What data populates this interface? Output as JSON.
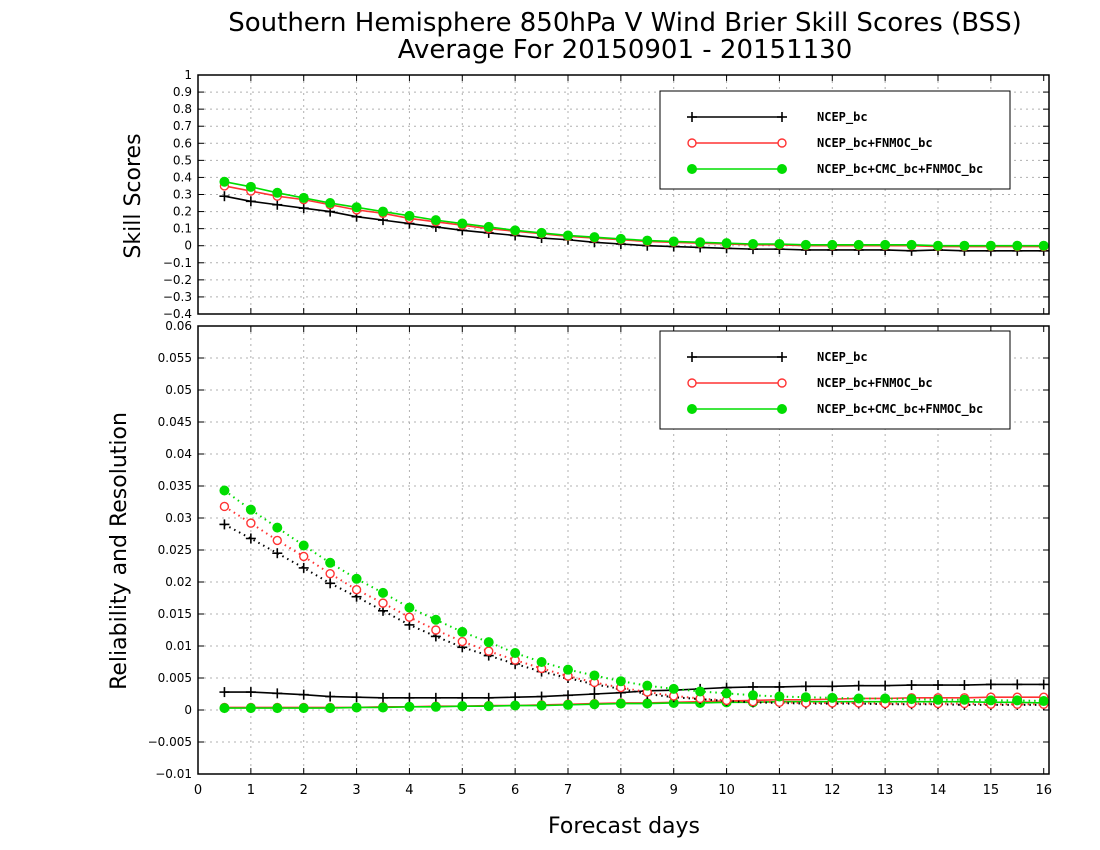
{
  "chart_data": {
    "title": "Southern Hemisphere 850hPa V Wind Brier Skill Scores (BSS)",
    "subtitle": "Average For 20150901 - 20151130",
    "xlabel": "Forecast days",
    "xlim": [
      0,
      16.1
    ],
    "xticks": [
      0,
      1,
      2,
      3,
      4,
      5,
      6,
      7,
      8,
      9,
      10,
      11,
      12,
      13,
      14,
      15,
      16
    ],
    "x": [
      0.5,
      1,
      1.5,
      2,
      2.5,
      3,
      3.5,
      4,
      4.5,
      5,
      5.5,
      6,
      6.5,
      7,
      7.5,
      8,
      8.5,
      9,
      9.5,
      10,
      10.5,
      11,
      11.5,
      12,
      12.5,
      13,
      13.5,
      14,
      14.5,
      15,
      15.5,
      16
    ],
    "grid": true,
    "legend_placement": "top-right",
    "series_styles": [
      {
        "name": "NCEP_bc",
        "color": "#000000",
        "marker": "plus"
      },
      {
        "name": "NCEP_bc+FNMOC_bc",
        "color": "#ff3333",
        "marker": "open-circle"
      },
      {
        "name": "NCEP_bc+CMC_bc+FNMOC_bc",
        "color": "#00dd00",
        "marker": "filled-circle"
      }
    ],
    "panels": [
      {
        "type": "line",
        "ylabel": "Skill Scores",
        "ylim": [
          -0.4,
          1
        ],
        "yticks": [
          "−0.4",
          "−0.3",
          "−0.2",
          "−0.1",
          "0",
          "0.1",
          "0.2",
          "0.3",
          "0.4",
          "0.5",
          "0.6",
          "0.7",
          "0.8",
          "0.9",
          "1"
        ],
        "ytick_values": [
          -0.4,
          -0.3,
          -0.2,
          -0.1,
          0,
          0.1,
          0.2,
          0.3,
          0.4,
          0.5,
          0.6,
          0.7,
          0.8,
          0.9,
          1
        ],
        "series": [
          {
            "name": "NCEP_bc",
            "style": "solid",
            "values": [
              0.29,
              0.26,
              0.24,
              0.22,
              0.2,
              0.17,
              0.15,
              0.13,
              0.11,
              0.09,
              0.075,
              0.06,
              0.045,
              0.035,
              0.02,
              0.01,
              0.0,
              -0.005,
              -0.01,
              -0.015,
              -0.02,
              -0.02,
              -0.025,
              -0.025,
              -0.025,
              -0.025,
              -0.03,
              -0.025,
              -0.03,
              -0.03,
              -0.03,
              -0.03
            ]
          },
          {
            "name": "NCEP_bc+FNMOC_bc",
            "style": "solid",
            "values": [
              0.35,
              0.32,
              0.29,
              0.27,
              0.24,
              0.21,
              0.19,
              0.16,
              0.14,
              0.12,
              0.1,
              0.085,
              0.07,
              0.055,
              0.045,
              0.035,
              0.025,
              0.02,
              0.015,
              0.01,
              0.005,
              0.005,
              0.0,
              0.0,
              0.0,
              0.0,
              0.0,
              -0.005,
              -0.005,
              -0.005,
              -0.005,
              -0.005
            ]
          },
          {
            "name": "NCEP_bc+CMC_bc+FNMOC_bc",
            "style": "solid",
            "values": [
              0.375,
              0.345,
              0.31,
              0.28,
              0.25,
              0.225,
              0.2,
              0.175,
              0.15,
              0.13,
              0.11,
              0.09,
              0.075,
              0.06,
              0.05,
              0.04,
              0.03,
              0.025,
              0.02,
              0.015,
              0.01,
              0.01,
              0.005,
              0.005,
              0.005,
              0.005,
              0.005,
              0.0,
              0.0,
              0.0,
              0.0,
              0.0
            ]
          }
        ],
        "legend": [
          "NCEP_bc",
          "NCEP_bc+FNMOC_bc",
          "NCEP_bc+CMC_bc+FNMOC_bc"
        ]
      },
      {
        "type": "line",
        "ylabel": "Reliability and Resolution",
        "ylim": [
          -0.01,
          0.06
        ],
        "yticks": [
          "−0.01",
          "−0.005",
          "0",
          "0.005",
          "0.01",
          "0.015",
          "0.02",
          "0.025",
          "0.03",
          "0.035",
          "0.04",
          "0.045",
          "0.05",
          "0.055",
          "0.06"
        ],
        "ytick_values": [
          -0.01,
          -0.005,
          0,
          0.005,
          0.01,
          0.015,
          0.02,
          0.025,
          0.03,
          0.035,
          0.04,
          0.045,
          0.05,
          0.055,
          0.06
        ],
        "series": [
          {
            "name": "NCEP_bc",
            "group": "reliability",
            "style": "solid",
            "values": [
              0.0028,
              0.0028,
              0.0026,
              0.0024,
              0.0021,
              0.002,
              0.0019,
              0.0019,
              0.0019,
              0.0019,
              0.0019,
              0.002,
              0.0021,
              0.0023,
              0.0025,
              0.0027,
              0.003,
              0.0031,
              0.0033,
              0.0035,
              0.0036,
              0.0036,
              0.0037,
              0.0037,
              0.0038,
              0.0038,
              0.0039,
              0.0039,
              0.0039,
              0.004,
              0.004,
              0.004
            ]
          },
          {
            "name": "NCEP_bc+FNMOC_bc",
            "group": "reliability",
            "style": "solid",
            "values": [
              0.0004,
              0.0004,
              0.0004,
              0.0004,
              0.0004,
              0.0004,
              0.0005,
              0.0005,
              0.0006,
              0.0006,
              0.0007,
              0.0007,
              0.0008,
              0.0009,
              0.001,
              0.0011,
              0.0011,
              0.0012,
              0.0013,
              0.0014,
              0.0015,
              0.0016,
              0.0016,
              0.0017,
              0.0018,
              0.0018,
              0.0019,
              0.0019,
              0.0019,
              0.002,
              0.002,
              0.002
            ]
          },
          {
            "name": "NCEP_bc+CMC_bc+FNMOC_bc",
            "group": "reliability",
            "style": "solid",
            "values": [
              0.0003,
              0.0003,
              0.0003,
              0.0003,
              0.0003,
              0.0004,
              0.0004,
              0.0005,
              0.0005,
              0.0006,
              0.0006,
              0.0007,
              0.0007,
              0.0008,
              0.0009,
              0.001,
              0.001,
              0.0011,
              0.0011,
              0.0012,
              0.0012,
              0.0013,
              0.0013,
              0.0013,
              0.0013,
              0.0013,
              0.0013,
              0.0013,
              0.0013,
              0.0012,
              0.0012,
              0.0011
            ]
          },
          {
            "name": "NCEP_bc",
            "group": "resolution",
            "style": "dotted",
            "values": [
              0.029,
              0.0268,
              0.0245,
              0.0222,
              0.0198,
              0.0177,
              0.0155,
              0.0133,
              0.0115,
              0.0098,
              0.0085,
              0.0072,
              0.006,
              0.005,
              0.004,
              0.0033,
              0.0025,
              0.002,
              0.0017,
              0.0014,
              0.0012,
              0.0011,
              0.001,
              0.001,
              0.001,
              0.0009,
              0.0009,
              0.0009,
              0.0008,
              0.0008,
              0.0008,
              0.0008
            ]
          },
          {
            "name": "NCEP_bc+FNMOC_bc",
            "group": "resolution",
            "style": "dotted",
            "values": [
              0.0318,
              0.0292,
              0.0265,
              0.024,
              0.0213,
              0.0188,
              0.0167,
              0.0145,
              0.0125,
              0.0107,
              0.0092,
              0.0078,
              0.0065,
              0.0053,
              0.0043,
              0.0035,
              0.0028,
              0.0022,
              0.0018,
              0.0015,
              0.0013,
              0.0012,
              0.0011,
              0.0011,
              0.0011,
              0.001,
              0.001,
              0.001,
              0.001,
              0.0009,
              0.0009,
              0.0009
            ]
          },
          {
            "name": "NCEP_bc+CMC_bc+FNMOC_bc",
            "group": "resolution",
            "style": "dotted",
            "values": [
              0.0343,
              0.0313,
              0.0285,
              0.0257,
              0.023,
              0.0205,
              0.0183,
              0.016,
              0.0141,
              0.0122,
              0.0106,
              0.0089,
              0.0075,
              0.0063,
              0.0054,
              0.0045,
              0.0038,
              0.0033,
              0.0029,
              0.0026,
              0.0023,
              0.0021,
              0.002,
              0.0019,
              0.0018,
              0.0018,
              0.0017,
              0.0016,
              0.0016,
              0.0015,
              0.0015,
              0.0014
            ]
          }
        ],
        "legend": [
          "NCEP_bc",
          "NCEP_bc+FNMOC_bc",
          "NCEP_bc+CMC_bc+FNMOC_bc"
        ]
      }
    ]
  }
}
